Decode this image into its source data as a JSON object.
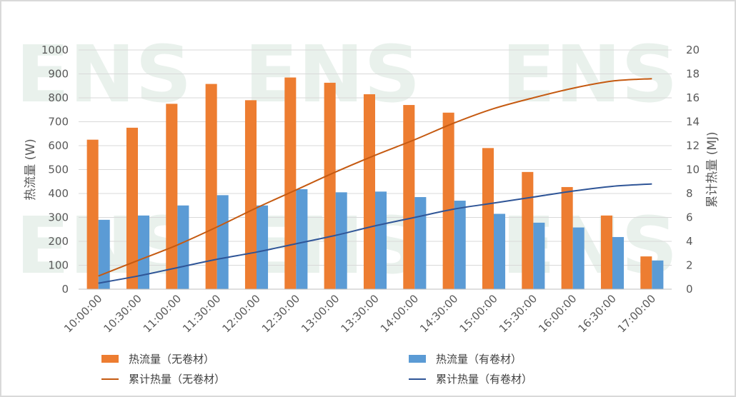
{
  "chart_data": {
    "type": "bar",
    "categories": [
      "10:00:00",
      "10:30:00",
      "11:00:00",
      "11:30:00",
      "12:00:00",
      "12:30:00",
      "13:00:00",
      "13:30:00",
      "14:00:00",
      "14:30:00",
      "15:00:00",
      "15:30:00",
      "16:00:00",
      "16:30:00",
      "17:00:00"
    ],
    "series": [
      {
        "name": "热流量（无卷材）",
        "kind": "bar",
        "axis": "left",
        "color": "#ed7d31",
        "values": [
          625,
          675,
          775,
          858,
          790,
          885,
          863,
          815,
          770,
          738,
          590,
          490,
          427,
          308,
          137
        ]
      },
      {
        "name": "热流量（有卷材）",
        "kind": "bar",
        "axis": "left",
        "color": "#5b9bd5",
        "values": [
          290,
          308,
          350,
          393,
          350,
          418,
          405,
          408,
          385,
          370,
          315,
          278,
          258,
          218,
          120
        ]
      },
      {
        "name": "累计热量（无卷材）",
        "kind": "line",
        "axis": "right",
        "color": "#c55a11",
        "values": [
          1.1,
          2.4,
          3.7,
          5.2,
          6.8,
          8.3,
          9.8,
          11.2,
          12.5,
          13.9,
          15.1,
          16.0,
          16.8,
          17.4,
          17.6
        ]
      },
      {
        "name": "累计热量（有卷材）",
        "kind": "line",
        "axis": "right",
        "color": "#2f5597",
        "values": [
          0.5,
          1.1,
          1.8,
          2.5,
          3.1,
          3.8,
          4.5,
          5.3,
          6.0,
          6.7,
          7.2,
          7.7,
          8.2,
          8.6,
          8.8
        ]
      }
    ],
    "ylabel": "热流量 (W)",
    "y2label": "累计热量 (MJ)",
    "ylim": [
      0,
      1000
    ],
    "y2lim": [
      0,
      20
    ],
    "yticks": [
      0,
      100,
      200,
      300,
      400,
      500,
      600,
      700,
      800,
      900,
      1000
    ],
    "y2ticks": [
      0,
      2,
      4,
      6,
      8,
      10,
      12,
      14,
      16,
      18,
      20
    ],
    "grid": true,
    "legend_position": "bottom"
  },
  "watermark": "ENS"
}
